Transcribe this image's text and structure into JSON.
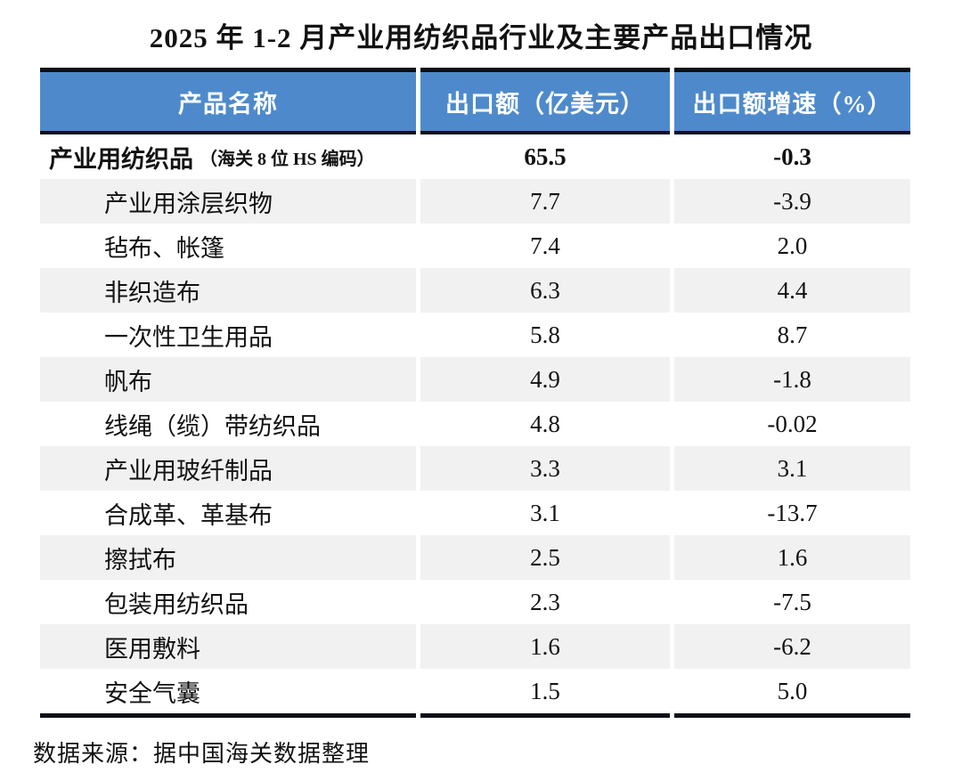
{
  "title": "2025 年 1-2 月产业用纺织品行业及主要产品出口情况",
  "footer": "数据来源：据中国海关数据整理",
  "colors": {
    "header_bg": "#4E8ACB",
    "stripe_bg": "#F1F1F1",
    "border": "#0B0F17",
    "header_text": "#FFFFFF"
  },
  "table": {
    "columns": [
      "产品名称",
      "出口额（亿美元）",
      "出口额增速（%）"
    ],
    "rows": [
      {
        "name": "产业用纺织品",
        "note": "（海关 8 位 HS 编码）",
        "export_value": "65.5",
        "growth": "-0.3",
        "is_total": true
      },
      {
        "name": "产业用涂层织物",
        "export_value": "7.7",
        "growth": "-3.9"
      },
      {
        "name": "毡布、帐篷",
        "export_value": "7.4",
        "growth": "2.0"
      },
      {
        "name": "非织造布",
        "export_value": "6.3",
        "growth": "4.4"
      },
      {
        "name": "一次性卫生用品",
        "export_value": "5.8",
        "growth": "8.7"
      },
      {
        "name": "帆布",
        "export_value": "4.9",
        "growth": "-1.8"
      },
      {
        "name": "线绳（缆）带纺织品",
        "export_value": "4.8",
        "growth": "-0.02"
      },
      {
        "name": "产业用玻纤制品",
        "export_value": "3.3",
        "growth": "3.1"
      },
      {
        "name": "合成革、革基布",
        "export_value": "3.1",
        "growth": "-13.7"
      },
      {
        "name": "擦拭布",
        "export_value": "2.5",
        "growth": "1.6"
      },
      {
        "name": "包装用纺织品",
        "export_value": "2.3",
        "growth": "-7.5"
      },
      {
        "name": "医用敷料",
        "export_value": "1.6",
        "growth": "-6.2"
      },
      {
        "name": "安全气囊",
        "export_value": "1.5",
        "growth": "5.0"
      }
    ]
  },
  "chart_data": {
    "type": "table",
    "title": "2025 年 1-2 月产业用纺织品行业及主要产品出口情况",
    "columns": [
      "产品名称",
      "出口额（亿美元）",
      "出口额增速（%）"
    ],
    "categories": [
      "产业用纺织品（海关 8 位 HS 编码）",
      "产业用涂层织物",
      "毡布、帐篷",
      "非织造布",
      "一次性卫生用品",
      "帆布",
      "线绳（缆）带纺织品",
      "产业用玻纤制品",
      "合成革、革基布",
      "擦拭布",
      "包装用纺织品",
      "医用敷料",
      "安全气囊"
    ],
    "series": [
      {
        "name": "出口额（亿美元）",
        "values": [
          65.5,
          7.7,
          7.4,
          6.3,
          5.8,
          4.9,
          4.8,
          3.3,
          3.1,
          2.5,
          2.3,
          1.6,
          1.5
        ]
      },
      {
        "name": "出口额增速（%）",
        "values": [
          -0.3,
          -3.9,
          2.0,
          4.4,
          8.7,
          -1.8,
          -0.02,
          3.1,
          -13.7,
          1.6,
          -7.5,
          -6.2,
          5.0
        ]
      }
    ],
    "source_note": "数据来源：据中国海关数据整理"
  }
}
